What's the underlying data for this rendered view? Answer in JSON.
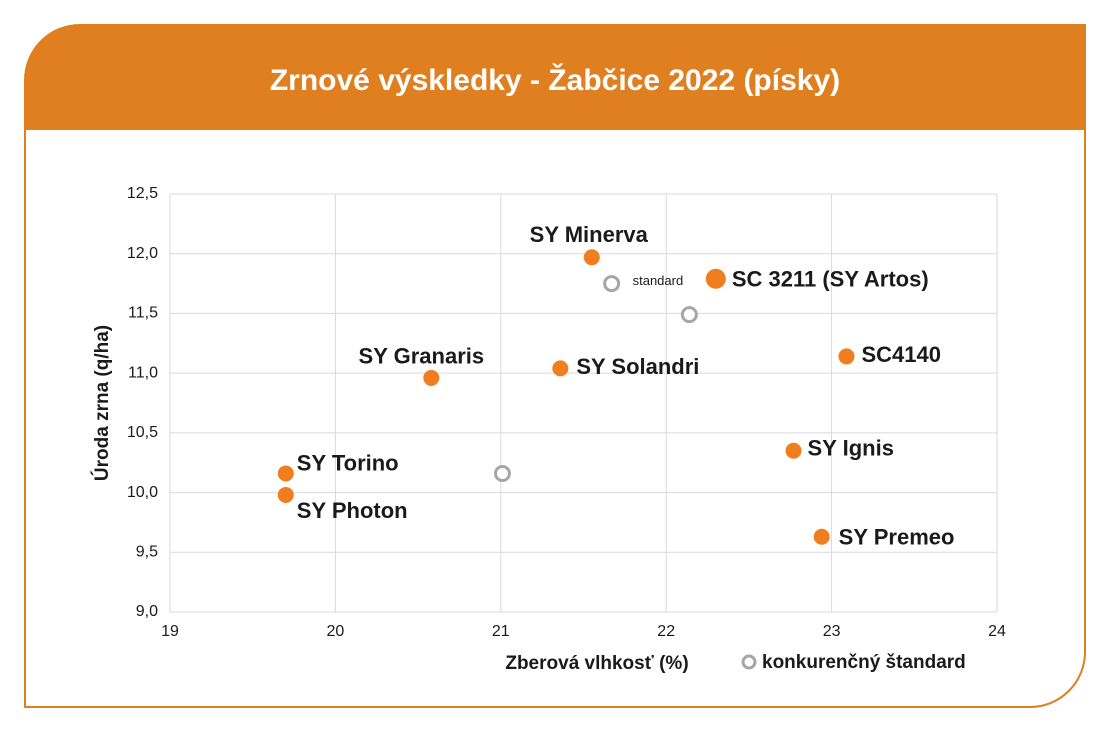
{
  "chart_data": {
    "type": "scatter",
    "title": "Zrnové výskledky - Žabčice 2022 (písky)",
    "xlabel": "Zberová vlhkosť (%)",
    "ylabel": "Úroda zrna (q/ha)",
    "xlim": [
      19,
      24
    ],
    "xticks": [
      19,
      20,
      21,
      22,
      23,
      24
    ],
    "ylim": [
      9,
      12.5
    ],
    "yticks": [
      {
        "value": 9,
        "label": "9,0"
      },
      {
        "value": 9.5,
        "label": "9,5"
      },
      {
        "value": 10,
        "label": "10,0"
      },
      {
        "value": 10.5,
        "label": "10,5"
      },
      {
        "value": 11,
        "label": "11,0"
      },
      {
        "value": 11.5,
        "label": "11,5"
      },
      {
        "value": 12,
        "label": "12,0"
      },
      {
        "value": 12.5,
        "label": "12,5"
      }
    ],
    "grid": true,
    "series": [
      {
        "color": "#f07d1e",
        "marker": "filled",
        "labels": [
          "SY Minerva",
          "SC 3211 (SY Artos)",
          "SC4140",
          "SY Granaris",
          "SY Solandri",
          "SY Ignis",
          "SY Torino",
          "SY Photon",
          "SY Premeo"
        ],
        "x": [
          21.55,
          22.3,
          23.09,
          20.58,
          21.36,
          22.77,
          19.7,
          19.7,
          22.94
        ],
        "values": [
          11.97,
          11.79,
          11.14,
          10.96,
          11.04,
          10.35,
          10.16,
          9.98,
          9.63
        ]
      },
      {
        "name": "konkurenčný štandard",
        "color": "#a6a6a6",
        "marker": "ring",
        "labels": [
          "standard",
          null,
          null
        ],
        "x": [
          21.67,
          22.14,
          21.01
        ],
        "values": [
          11.75,
          11.49,
          10.16
        ]
      }
    ]
  }
}
